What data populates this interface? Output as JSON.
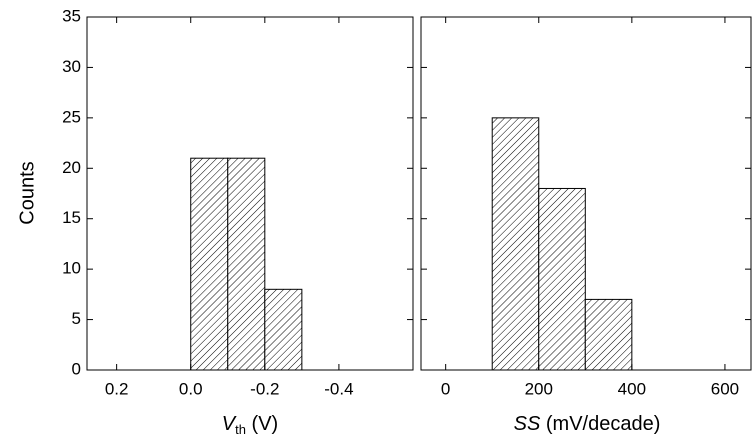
{
  "chart_data": [
    {
      "type": "histogram",
      "bins": [
        0.0,
        -0.1,
        -0.2,
        -0.3
      ],
      "values": [
        21,
        21,
        8
      ],
      "xlim": [
        0.28,
        -0.6
      ],
      "xticks": [
        0.2,
        {
          "value": 0,
          "label": "0.0"
        },
        -0.2,
        -0.4
      ],
      "ylim": [
        0,
        35
      ],
      "yticks": [
        0,
        5,
        10,
        15,
        20,
        25,
        30,
        35
      ],
      "ylabel": "Counts",
      "xlabel": {
        "symbol": "V",
        "subscript": "th",
        "unit": " (V)"
      },
      "hatch": true,
      "color": "#000000"
    },
    {
      "type": "histogram",
      "bins": [
        100,
        200,
        300,
        400
      ],
      "values": [
        25,
        18,
        7
      ],
      "xlim": [
        -53,
        656
      ],
      "xticks": [
        0,
        200,
        400,
        600
      ],
      "ylim": [
        0,
        35
      ],
      "yticks": [
        0,
        5,
        10,
        15,
        20,
        25,
        30,
        35
      ],
      "xlabel": {
        "symbol": "SS",
        "unit": " (mV/decade)"
      },
      "hatch": true,
      "color": "#000000"
    }
  ]
}
